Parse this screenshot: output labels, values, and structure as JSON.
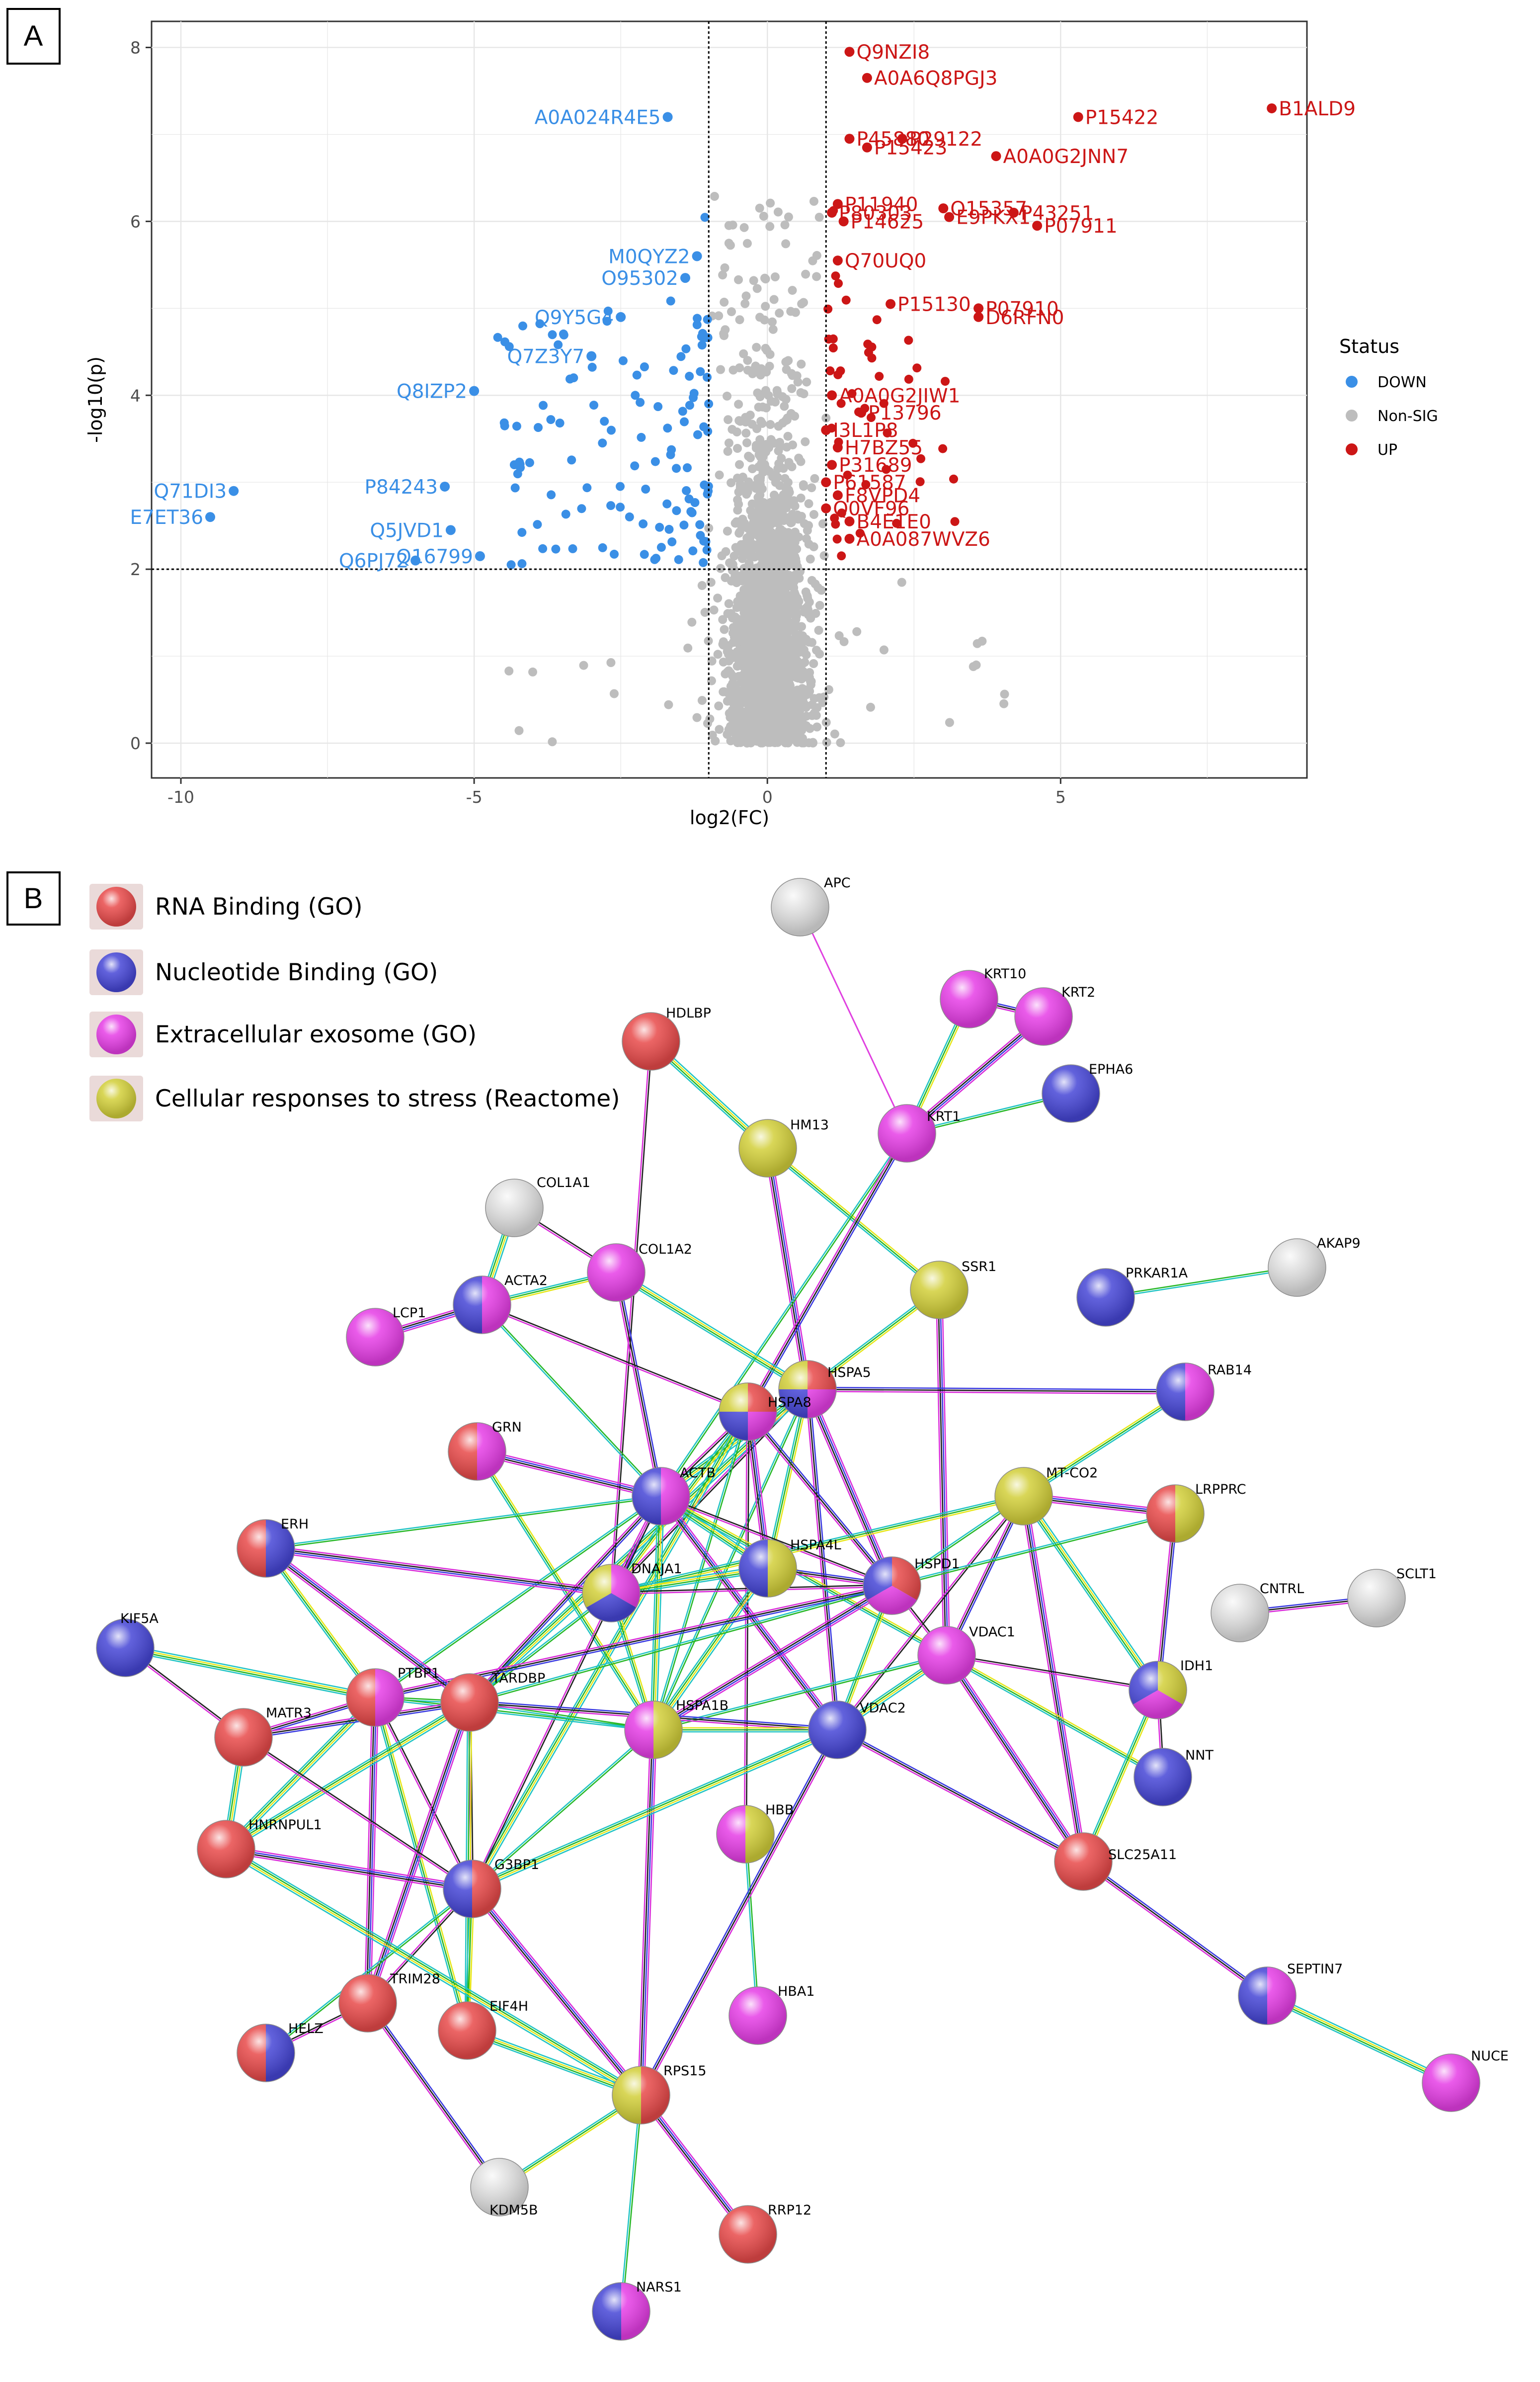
{
  "panel_a": {
    "letter": "A",
    "chart_data": {
      "type": "scatter",
      "title": "",
      "xlabel": "log2(FC)",
      "ylabel": "-log10(p)",
      "xlim": [
        -10.5,
        9.2
      ],
      "ylim": [
        -0.4,
        8.3
      ],
      "x_ticks": [
        -10,
        -5,
        0,
        5
      ],
      "y_ticks": [
        0,
        2,
        4,
        6,
        8
      ],
      "x_tick_labels": [
        "-10",
        "-5",
        "0",
        "5"
      ],
      "y_tick_labels": [
        "0",
        "2",
        "4",
        "6",
        "8"
      ],
      "thresholds": {
        "log2fc": [
          -1,
          1
        ],
        "neglog10p": 2
      },
      "legend": {
        "title": "Status",
        "position": "right",
        "entries": [
          {
            "label": "DOWN",
            "color": "#3a8fe6"
          },
          {
            "label": "Non-SIG",
            "color": "#bdbdbd"
          },
          {
            "label": "UP",
            "color": "#cc1616"
          }
        ]
      },
      "colors": {
        "DOWN": "#3a8fe6",
        "NonSIG": "#bdbdbd",
        "UP": "#cc1616"
      },
      "labeled_points": [
        {
          "label": "Q9NZI8",
          "x": 1.4,
          "y": 7.95,
          "status": "UP"
        },
        {
          "label": "A0A6Q8PGJ3",
          "x": 1.7,
          "y": 7.65,
          "status": "UP"
        },
        {
          "label": "P45880",
          "x": 1.4,
          "y": 6.95,
          "status": "UP"
        },
        {
          "label": "P29122",
          "x": 2.3,
          "y": 6.95,
          "status": "UP"
        },
        {
          "label": "P15422",
          "x": 5.3,
          "y": 7.2,
          "status": "UP"
        },
        {
          "label": "B1ALD9",
          "x": 8.6,
          "y": 7.3,
          "status": "UP"
        },
        {
          "label": "P15423",
          "x": 1.7,
          "y": 6.85,
          "status": "UP"
        },
        {
          "label": "A0A0G2JNN7",
          "x": 3.9,
          "y": 6.75,
          "status": "UP"
        },
        {
          "label": "P11940",
          "x": 1.2,
          "y": 6.2,
          "status": "UP"
        },
        {
          "label": "O15357",
          "x": 3.0,
          "y": 6.15,
          "status": "UP"
        },
        {
          "label": "P43251",
          "x": 4.2,
          "y": 6.1,
          "status": "UP"
        },
        {
          "label": "P80303",
          "x": 1.1,
          "y": 6.1,
          "status": "UP"
        },
        {
          "label": "P14625",
          "x": 1.3,
          "y": 6.0,
          "status": "UP"
        },
        {
          "label": "E9PKX1",
          "x": 3.1,
          "y": 6.05,
          "status": "UP"
        },
        {
          "label": "P07911",
          "x": 4.6,
          "y": 5.95,
          "status": "UP"
        },
        {
          "label": "Q70UQ0",
          "x": 1.2,
          "y": 5.55,
          "status": "UP"
        },
        {
          "label": "P15130",
          "x": 2.1,
          "y": 5.05,
          "status": "UP"
        },
        {
          "label": "P07910",
          "x": 3.6,
          "y": 5.0,
          "status": "UP"
        },
        {
          "label": "D6RFN0",
          "x": 3.6,
          "y": 4.9,
          "status": "UP"
        },
        {
          "label": "A0A0G2JIW1",
          "x": 1.1,
          "y": 4.0,
          "status": "UP"
        },
        {
          "label": "P13796",
          "x": 1.6,
          "y": 3.8,
          "status": "UP"
        },
        {
          "label": "I3L1P8",
          "x": 1.0,
          "y": 3.6,
          "status": "UP"
        },
        {
          "label": "H7BZ55",
          "x": 1.2,
          "y": 3.4,
          "status": "UP"
        },
        {
          "label": "P31689",
          "x": 1.1,
          "y": 3.2,
          "status": "UP"
        },
        {
          "label": "P61587",
          "x": 1.0,
          "y": 3.0,
          "status": "UP"
        },
        {
          "label": "F8VPD4",
          "x": 1.2,
          "y": 2.85,
          "status": "UP"
        },
        {
          "label": "Q0VF96",
          "x": 1.0,
          "y": 2.7,
          "status": "UP"
        },
        {
          "label": "B4E1E0",
          "x": 1.4,
          "y": 2.55,
          "status": "UP"
        },
        {
          "label": "A0A087WVZ6",
          "x": 1.4,
          "y": 2.35,
          "status": "UP"
        },
        {
          "label": "A0A024R4E5",
          "x": -1.7,
          "y": 7.2,
          "status": "DOWN"
        },
        {
          "label": "M0QYZ2",
          "x": -1.2,
          "y": 5.6,
          "status": "DOWN"
        },
        {
          "label": "O95302",
          "x": -1.4,
          "y": 5.35,
          "status": "DOWN"
        },
        {
          "label": "Q9Y5G4",
          "x": -2.5,
          "y": 4.9,
          "status": "DOWN"
        },
        {
          "label": "Q7Z3Y7",
          "x": -3.0,
          "y": 4.45,
          "status": "DOWN"
        },
        {
          "label": "Q8IZP2",
          "x": -5.0,
          "y": 4.05,
          "status": "DOWN"
        },
        {
          "label": "Q71DI3",
          "x": -9.1,
          "y": 2.9,
          "status": "DOWN"
        },
        {
          "label": "E7ET36",
          "x": -9.5,
          "y": 2.6,
          "status": "DOWN"
        },
        {
          "label": "P84243",
          "x": -5.5,
          "y": 2.95,
          "status": "DOWN"
        },
        {
          "label": "Q5JVD1",
          "x": -5.4,
          "y": 2.45,
          "status": "DOWN"
        },
        {
          "label": "Q6PJ72",
          "x": -6.0,
          "y": 2.1,
          "status": "DOWN"
        },
        {
          "label": "Q16799",
          "x": -4.9,
          "y": 2.15,
          "status": "DOWN"
        }
      ]
    }
  },
  "panel_b": {
    "letter": "B",
    "network_legend": [
      {
        "label": "RNA Binding (GO)",
        "color": "#e84a4a"
      },
      {
        "label": "Nucleotide Binding (GO)",
        "color": "#4646d6"
      },
      {
        "label": "Extracellular exosome (GO)",
        "color": "#e63ee6"
      },
      {
        "label": "Cellular responses to stress (Reactome)",
        "color": "#d2cf3a"
      }
    ],
    "colors": {
      "R": "#e84a4a",
      "B": "#4646d6",
      "P": "#e63ee6",
      "Y": "#d2cf3a",
      "W": "#e0e0e0"
    },
    "nodes": [
      {
        "id": "APC",
        "label": "APC",
        "c": [
          "W"
        ]
      },
      {
        "id": "KRT10",
        "label": "KRT10",
        "c": [
          "P"
        ]
      },
      {
        "id": "KRT2",
        "label": "KRT2",
        "c": [
          "P"
        ]
      },
      {
        "id": "EPHA6",
        "label": "EPHA6",
        "c": [
          "B"
        ]
      },
      {
        "id": "KRT1",
        "label": "KRT1",
        "c": [
          "P"
        ]
      },
      {
        "id": "HDLBP",
        "label": "HDLBP",
        "c": [
          "R"
        ]
      },
      {
        "id": "HM13",
        "label": "HM13",
        "c": [
          "Y"
        ]
      },
      {
        "id": "COL1A1",
        "label": "COL1A1",
        "c": [
          "W"
        ]
      },
      {
        "id": "COL1A2",
        "label": "COL1A2",
        "c": [
          "P"
        ]
      },
      {
        "id": "ACTA2",
        "label": "ACTA2",
        "c": [
          "P",
          "B"
        ]
      },
      {
        "id": "LCP1",
        "label": "LCP1",
        "c": [
          "P"
        ]
      },
      {
        "id": "SSR1",
        "label": "SSR1",
        "c": [
          "Y"
        ]
      },
      {
        "id": "PRKAR1A",
        "label": "PRKAR1A",
        "c": [
          "B"
        ]
      },
      {
        "id": "AKAP9",
        "label": "AKAP9",
        "c": [
          "W"
        ]
      },
      {
        "id": "RAB14",
        "label": "RAB14",
        "c": [
          "P",
          "B"
        ]
      },
      {
        "id": "HSPA5",
        "label": "HSPA5",
        "c": [
          "R",
          "P",
          "B",
          "Y"
        ]
      },
      {
        "id": "HSPA8",
        "label": "HSPA8",
        "c": [
          "R",
          "P",
          "B",
          "Y"
        ]
      },
      {
        "id": "GRN",
        "label": "GRN",
        "c": [
          "P",
          "R"
        ]
      },
      {
        "id": "ACTB",
        "label": "ACTB",
        "c": [
          "P",
          "B"
        ]
      },
      {
        "id": "MTCO2",
        "label": "MT-CO2",
        "c": [
          "Y"
        ]
      },
      {
        "id": "LRPPRC",
        "label": "LRPPRC",
        "c": [
          "Y",
          "R"
        ]
      },
      {
        "id": "ERH",
        "label": "ERH",
        "c": [
          "B",
          "R"
        ]
      },
      {
        "id": "DNAJA1",
        "label": "DNAJA1",
        "c": [
          "P",
          "B",
          "Y"
        ]
      },
      {
        "id": "HSPA4L",
        "label": "HSPA4L",
        "c": [
          "Y",
          "B"
        ]
      },
      {
        "id": "HSPD1",
        "label": "HSPD1",
        "c": [
          "R",
          "P",
          "B"
        ]
      },
      {
        "id": "CNTRL",
        "label": "CNTRL",
        "c": [
          "W"
        ]
      },
      {
        "id": "SCLT1",
        "label": "SCLT1",
        "c": [
          "W"
        ]
      },
      {
        "id": "KIF5A",
        "label": "KIF5A",
        "c": [
          "B"
        ]
      },
      {
        "id": "VDAC1",
        "label": "VDAC1",
        "c": [
          "P"
        ]
      },
      {
        "id": "PTBP1",
        "label": "PTBP1",
        "c": [
          "P",
          "R"
        ]
      },
      {
        "id": "TARDBP",
        "label": "TARDBP",
        "c": [
          "R"
        ]
      },
      {
        "id": "MATR3",
        "label": "MATR3",
        "c": [
          "R"
        ]
      },
      {
        "id": "HSPA1B",
        "label": "HSPA1B",
        "c": [
          "Y",
          "P"
        ]
      },
      {
        "id": "VDAC2",
        "label": "VDAC2",
        "c": [
          "B"
        ]
      },
      {
        "id": "IDH1",
        "label": "IDH1",
        "c": [
          "Y",
          "P",
          "B"
        ]
      },
      {
        "id": "NNT",
        "label": "NNT",
        "c": [
          "B"
        ]
      },
      {
        "id": "HNRNPUL1",
        "label": "HNRNPUL1",
        "c": [
          "R"
        ]
      },
      {
        "id": "HBB",
        "label": "HBB",
        "c": [
          "Y",
          "P"
        ]
      },
      {
        "id": "SLC25A11",
        "label": "SLC25A11",
        "c": [
          "R"
        ]
      },
      {
        "id": "G3BP1",
        "label": "G3BP1",
        "c": [
          "R",
          "B"
        ]
      },
      {
        "id": "TRIM28",
        "label": "TRIM28",
        "c": [
          "R"
        ]
      },
      {
        "id": "EIF4H",
        "label": "EIF4H",
        "c": [
          "R"
        ]
      },
      {
        "id": "HBA1",
        "label": "HBA1",
        "c": [
          "P"
        ]
      },
      {
        "id": "SEPTIN7",
        "label": "SEPTIN7",
        "c": [
          "P",
          "B"
        ]
      },
      {
        "id": "NUCB",
        "label": "NUCE",
        "c": [
          "P"
        ]
      },
      {
        "id": "HELZ",
        "label": "HELZ",
        "c": [
          "B",
          "R"
        ]
      },
      {
        "id": "RPS15",
        "label": "RPS15",
        "c": [
          "R",
          "Y"
        ]
      },
      {
        "id": "KDM5B",
        "label": "KDM5B",
        "c": [
          "W"
        ]
      },
      {
        "id": "RRP12",
        "label": "RRP12",
        "c": [
          "R"
        ]
      },
      {
        "id": "NARS1",
        "label": "NARS1",
        "c": [
          "P",
          "B"
        ]
      }
    ],
    "edges": [
      [
        "APC",
        "KRT1"
      ],
      [
        "KRT10",
        "KRT1"
      ],
      [
        "KRT2",
        "KRT1"
      ],
      [
        "EPHA6",
        "KRT1"
      ],
      [
        "KRT10",
        "KRT2"
      ],
      [
        "HDLBP",
        "HM13"
      ],
      [
        "HDLBP",
        "DNAJA1"
      ],
      [
        "HM13",
        "SSR1"
      ],
      [
        "HM13",
        "HSPA5"
      ],
      [
        "KRT1",
        "ACTB"
      ],
      [
        "KRT1",
        "HSPA8"
      ],
      [
        "COL1A1",
        "ACTA2"
      ],
      [
        "COL1A1",
        "COL1A2"
      ],
      [
        "COL1A2",
        "ACTA2"
      ],
      [
        "ACTA2",
        "LCP1"
      ],
      [
        "ACTA2",
        "ACTB"
      ],
      [
        "COL1A2",
        "ACTB"
      ],
      [
        "COL1A2",
        "HSPA5"
      ],
      [
        "ACTA2",
        "HSPA8"
      ],
      [
        "SSR1",
        "HSPA5"
      ],
      [
        "SSR1",
        "VDAC1"
      ],
      [
        "PRKAR1A",
        "AKAP9"
      ],
      [
        "HSPA5",
        "RAB14"
      ],
      [
        "HSPA5",
        "ACTB"
      ],
      [
        "HSPA5",
        "DNAJA1"
      ],
      [
        "HSPA5",
        "HSPA4L"
      ],
      [
        "HSPA5",
        "HSPD1"
      ],
      [
        "HSPA5",
        "HSPA1B"
      ],
      [
        "HSPA5",
        "VDAC2"
      ],
      [
        "HSPA5",
        "TARDBP"
      ],
      [
        "HSPA8",
        "ACTB"
      ],
      [
        "HSPA8",
        "DNAJA1"
      ],
      [
        "HSPA8",
        "HSPA4L"
      ],
      [
        "HSPA8",
        "HSPA1B"
      ],
      [
        "HSPA8",
        "HSPD1"
      ],
      [
        "HSPA8",
        "G3BP1"
      ],
      [
        "HSPA8",
        "HBB"
      ],
      [
        "GRN",
        "HSPA1B"
      ],
      [
        "GRN",
        "ACTB"
      ],
      [
        "ACTB",
        "ERH"
      ],
      [
        "ACTB",
        "DNAJA1"
      ],
      [
        "ACTB",
        "HSPA4L"
      ],
      [
        "ACTB",
        "HSPD1"
      ],
      [
        "ACTB",
        "VDAC1"
      ],
      [
        "ACTB",
        "VDAC2"
      ],
      [
        "ACTB",
        "PTBP1"
      ],
      [
        "ACTB",
        "TARDBP"
      ],
      [
        "ACTB",
        "HSPA1B"
      ],
      [
        "ACTB",
        "G3BP1"
      ],
      [
        "MTCO2",
        "RAB14"
      ],
      [
        "MTCO2",
        "LRPPRC"
      ],
      [
        "MTCO2",
        "HSPD1"
      ],
      [
        "MTCO2",
        "VDAC1"
      ],
      [
        "MTCO2",
        "IDH1"
      ],
      [
        "MTCO2",
        "VDAC2"
      ],
      [
        "MTCO2",
        "DNAJA1"
      ],
      [
        "MTCO2",
        "SLC25A11"
      ],
      [
        "LRPPRC",
        "HSPD1"
      ],
      [
        "LRPPRC",
        "IDH1"
      ],
      [
        "DNAJA1",
        "HSPA4L"
      ],
      [
        "DNAJA1",
        "HSPD1"
      ],
      [
        "DNAJA1",
        "HSPA1B"
      ],
      [
        "DNAJA1",
        "ERH"
      ],
      [
        "DNAJA1",
        "TARDBP"
      ],
      [
        "HSPA4L",
        "HSPD1"
      ],
      [
        "HSPA4L",
        "HSPA1B"
      ],
      [
        "HSPD1",
        "VDAC1"
      ],
      [
        "HSPD1",
        "VDAC2"
      ],
      [
        "HSPD1",
        "HSPA1B"
      ],
      [
        "HSPD1",
        "TARDBP"
      ],
      [
        "HSPD1",
        "PTBP1"
      ],
      [
        "VDAC1",
        "VDAC2"
      ],
      [
        "VDAC1",
        "IDH1"
      ],
      [
        "VDAC1",
        "NNT"
      ],
      [
        "VDAC1",
        "SLC25A11"
      ],
      [
        "VDAC1",
        "HSPA1B"
      ],
      [
        "CNTRL",
        "SCLT1"
      ],
      [
        "KIF5A",
        "PTBP1"
      ],
      [
        "KIF5A",
        "MATR3"
      ],
      [
        "ERH",
        "PTBP1"
      ],
      [
        "ERH",
        "TARDBP"
      ],
      [
        "PTBP1",
        "TARDBP"
      ],
      [
        "PTBP1",
        "MATR3"
      ],
      [
        "PTBP1",
        "HNRNPUL1"
      ],
      [
        "PTBP1",
        "G3BP1"
      ],
      [
        "PTBP1",
        "EIF4H"
      ],
      [
        "PTBP1",
        "TRIM28"
      ],
      [
        "PTBP1",
        "HSPA1B"
      ],
      [
        "TARDBP",
        "MATR3"
      ],
      [
        "TARDBP",
        "HNRNPUL1"
      ],
      [
        "TARDBP",
        "G3BP1"
      ],
      [
        "TARDBP",
        "EIF4H"
      ],
      [
        "TARDBP",
        "TRIM28"
      ],
      [
        "TARDBP",
        "HSPA1B"
      ],
      [
        "TARDBP",
        "VDAC2"
      ],
      [
        "MATR3",
        "HNRNPUL1"
      ],
      [
        "MATR3",
        "G3BP1"
      ],
      [
        "HSPA1B",
        "VDAC2"
      ],
      [
        "HSPA1B",
        "RPS15"
      ],
      [
        "HSPA1B",
        "G3BP1"
      ],
      [
        "VDAC2",
        "SLC25A11"
      ],
      [
        "VDAC2",
        "G3BP1"
      ],
      [
        "IDH1",
        "NNT"
      ],
      [
        "IDH1",
        "SLC25A11"
      ],
      [
        "HNRNPUL1",
        "G3BP1"
      ],
      [
        "HBB",
        "HBA1"
      ],
      [
        "SLC25A11",
        "SEPTIN7"
      ],
      [
        "SEPTIN7",
        "NUCB"
      ],
      [
        "G3BP1",
        "TRIM28"
      ],
      [
        "G3BP1",
        "EIF4H"
      ],
      [
        "G3BP1",
        "RPS15"
      ],
      [
        "G3BP1",
        "HELZ"
      ],
      [
        "TRIM28",
        "KDM5B"
      ],
      [
        "EIF4H",
        "RPS15"
      ],
      [
        "HELZ",
        "TRIM28"
      ],
      [
        "RPS15",
        "KDM5B"
      ],
      [
        "RPS15",
        "RRP12"
      ],
      [
        "RPS15",
        "NARS1"
      ],
      [
        "RPS15",
        "VDAC2"
      ],
      [
        "RPS15",
        "HNRNPUL1"
      ]
    ]
  }
}
